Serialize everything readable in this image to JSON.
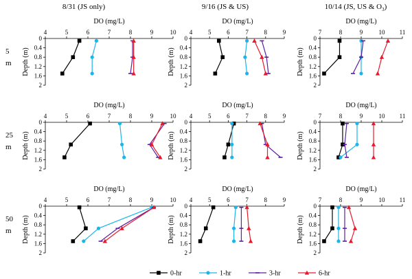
{
  "column_titles": [
    "8/31 (JS only)",
    "9/16 (JS & US)",
    "10/14 (JS, US & O3)"
  ],
  "row_labels": [
    {
      "top": "5",
      "bottom": "m"
    },
    {
      "top": "25",
      "bottom": "m"
    },
    {
      "top": "50",
      "bottom": "m"
    }
  ],
  "legend": [
    {
      "name": "0-hr",
      "color": "#000000",
      "marker": "square"
    },
    {
      "name": "1-hr",
      "color": "#1CB5E8",
      "marker": "circle"
    },
    {
      "name": "3-hr",
      "color": "#5B1E9E",
      "marker": "dash"
    },
    {
      "name": "6-hr",
      "color": "#E8192C",
      "marker": "triangle"
    }
  ],
  "chart_data": [
    {
      "type": "line",
      "column": 0,
      "row": 0,
      "xlabel": "DO (mg/L)",
      "ylabel": "Depth (m)",
      "xlim": [
        4,
        10
      ],
      "xticks": [
        4,
        5,
        6,
        7,
        8,
        9,
        10
      ],
      "ylim": [
        0,
        2
      ],
      "yticks": [
        "0",
        "0.4",
        "0.8",
        "1.2",
        "1.6",
        "2"
      ],
      "y": [
        0.1,
        0.8,
        1.5
      ],
      "series": [
        {
          "name": "0-hr",
          "values": [
            5.6,
            5.3,
            4.8
          ]
        },
        {
          "name": "1-hr",
          "values": [
            6.4,
            6.2,
            6.2
          ]
        },
        {
          "name": "3-hr",
          "values": [
            8.1,
            8.1,
            8.0
          ]
        },
        {
          "name": "6-hr",
          "values": [
            8.15,
            8.15,
            8.15
          ]
        }
      ]
    },
    {
      "type": "line",
      "column": 1,
      "row": 0,
      "xlabel": "DO (mg/L)",
      "ylabel": "Depth (m)",
      "xlim": [
        4,
        9
      ],
      "xticks": [
        4,
        5,
        6,
        7,
        8,
        9
      ],
      "ylim": [
        0,
        2
      ],
      "yticks": [
        "0",
        "0.4",
        "0.8",
        "1.2",
        "1.6",
        "2"
      ],
      "y": [
        0.1,
        0.8,
        1.5
      ],
      "series": [
        {
          "name": "0-hr",
          "values": [
            5.5,
            5.7,
            5.3
          ]
        },
        {
          "name": "1-hr",
          "values": [
            7.0,
            6.9,
            7.0
          ]
        },
        {
          "name": "3-hr",
          "values": [
            7.8,
            8.05,
            8.15
          ]
        },
        {
          "name": "6-hr",
          "values": [
            7.4,
            7.8,
            8.0
          ]
        }
      ]
    },
    {
      "type": "line",
      "column": 2,
      "row": 0,
      "xlabel": "DO (mg/L)",
      "ylabel": "Depth (m)",
      "xlim": [
        7,
        11
      ],
      "xticks": [
        7,
        8,
        9,
        10,
        11
      ],
      "ylim": [
        0,
        2
      ],
      "yticks": [
        "0",
        "0.4",
        "0.8",
        "1.2",
        "1.6",
        "2"
      ],
      "y": [
        0.1,
        0.8,
        1.5
      ],
      "series": [
        {
          "name": "0-hr",
          "values": [
            7.95,
            7.95,
            7.2
          ]
        },
        {
          "name": "1-hr",
          "values": [
            9.0,
            9.0,
            9.0
          ]
        },
        {
          "name": "3-hr",
          "values": [
            9.1,
            9.0,
            8.6
          ]
        },
        {
          "name": "6-hr",
          "values": [
            10.3,
            10.0,
            9.8
          ]
        }
      ]
    },
    {
      "type": "line",
      "column": 0,
      "row": 1,
      "xlabel": "DO (mg/L)",
      "ylabel": "Depth (m)",
      "xlim": [
        4,
        10
      ],
      "xticks": [
        4,
        5,
        6,
        7,
        8,
        9,
        10
      ],
      "ylim": [
        0,
        2
      ],
      "yticks": [
        "0",
        "0.4",
        "0.8",
        "1.2",
        "1.6",
        "2"
      ],
      "y": [
        0.05,
        0.95,
        1.5
      ],
      "series": [
        {
          "name": "0-hr",
          "values": [
            6.1,
            5.2,
            4.9
          ]
        },
        {
          "name": "1-hr",
          "values": [
            7.5,
            7.6,
            7.7
          ]
        },
        {
          "name": "3-hr",
          "values": [
            9.6,
            8.9,
            9.3
          ]
        },
        {
          "name": "6-hr",
          "values": [
            9.5,
            9.0,
            9.4
          ]
        }
      ]
    },
    {
      "type": "line",
      "column": 1,
      "row": 1,
      "xlabel": "DO (mg/L)",
      "ylabel": "Depth (m)",
      "xlim": [
        4,
        9
      ],
      "xticks": [
        4,
        5,
        6,
        7,
        8,
        9
      ],
      "ylim": [
        0,
        2
      ],
      "yticks": [
        "0",
        "0.4",
        "0.8",
        "1.2",
        "1.6",
        "2"
      ],
      "y": [
        0.05,
        0.95,
        1.5
      ],
      "series": [
        {
          "name": "0-hr",
          "values": [
            6.3,
            6.0,
            5.8
          ]
        },
        {
          "name": "1-hr",
          "values": [
            6.2,
            6.2,
            6.2
          ]
        },
        {
          "name": "3-hr",
          "values": [
            7.8,
            8.0,
            8.8
          ]
        },
        {
          "name": "6-hr",
          "values": [
            7.7,
            8.1,
            8.1
          ]
        }
      ]
    },
    {
      "type": "line",
      "column": 2,
      "row": 1,
      "xlabel": "DO (mg/L)",
      "ylabel": "Depth (m)",
      "xlim": [
        7,
        11
      ],
      "xticks": [
        7,
        8,
        9,
        10,
        11
      ],
      "ylim": [
        0,
        2
      ],
      "yticks": [
        "0",
        "0.4",
        "0.8",
        "1.2",
        "1.6",
        "2"
      ],
      "y": [
        0.05,
        0.95,
        1.5
      ],
      "series": [
        {
          "name": "0-hr",
          "values": [
            8.1,
            8.1,
            7.9
          ]
        },
        {
          "name": "1-hr",
          "values": [
            8.8,
            8.8,
            8.0
          ]
        },
        {
          "name": "3-hr",
          "values": [
            8.3,
            8.2,
            8.3
          ]
        },
        {
          "name": "6-hr",
          "values": [
            9.6,
            9.6,
            9.6
          ]
        }
      ]
    },
    {
      "type": "line",
      "column": 0,
      "row": 2,
      "xlabel": "DO (mg/L)",
      "ylabel": "Depth (m)",
      "xlim": [
        4,
        10
      ],
      "xticks": [
        4,
        5,
        6,
        7,
        8,
        9,
        10
      ],
      "ylim": [
        0,
        2
      ],
      "yticks": [
        "0",
        "0.4",
        "0.8",
        "1.2",
        "1.6",
        "2"
      ],
      "y": [
        0.05,
        0.95,
        1.5
      ],
      "series": [
        {
          "name": "0-hr",
          "values": [
            5.6,
            5.9,
            5.3
          ]
        },
        {
          "name": "1-hr",
          "values": [
            9.0,
            6.5,
            5.8
          ]
        },
        {
          "name": "3-hr",
          "values": [
            9.1,
            7.4,
            6.6
          ]
        },
        {
          "name": "6-hr",
          "values": [
            9.1,
            7.6,
            6.8
          ]
        }
      ]
    },
    {
      "type": "line",
      "column": 1,
      "row": 2,
      "xlabel": "DO (mg/L)",
      "ylabel": "Depth (m)",
      "xlim": [
        4,
        9
      ],
      "xticks": [
        4,
        5,
        6,
        7,
        8,
        9
      ],
      "ylim": [
        0,
        2
      ],
      "yticks": [
        "0",
        "0.4",
        "0.8",
        "1.2",
        "1.6",
        "2"
      ],
      "y": [
        0.05,
        0.95,
        1.5
      ],
      "series": [
        {
          "name": "0-hr",
          "values": [
            5.2,
            4.8,
            4.5
          ]
        },
        {
          "name": "1-hr",
          "values": [
            6.4,
            6.3,
            6.3
          ]
        },
        {
          "name": "3-hr",
          "values": [
            6.7,
            6.7,
            6.7
          ]
        },
        {
          "name": "6-hr",
          "values": [
            7.0,
            7.1,
            7.2
          ]
        }
      ]
    },
    {
      "type": "line",
      "column": 2,
      "row": 2,
      "xlabel": "DO (mg/L)",
      "ylabel": "Depth (m)",
      "xlim": [
        7,
        11
      ],
      "xticks": [
        7,
        8,
        9,
        10,
        11
      ],
      "ylim": [
        0,
        2
      ],
      "yticks": [
        "0",
        "0.4",
        "0.8",
        "1.2",
        "1.6",
        "2"
      ],
      "y": [
        0.05,
        0.95,
        1.5
      ],
      "series": [
        {
          "name": "0-hr",
          "values": [
            7.6,
            7.6,
            7.2
          ]
        },
        {
          "name": "1-hr",
          "values": [
            7.9,
            7.9,
            7.9
          ]
        },
        {
          "name": "3-hr",
          "values": [
            8.2,
            8.2,
            8.2
          ]
        },
        {
          "name": "6-hr",
          "values": [
            8.4,
            8.7,
            8.5
          ]
        }
      ]
    }
  ]
}
